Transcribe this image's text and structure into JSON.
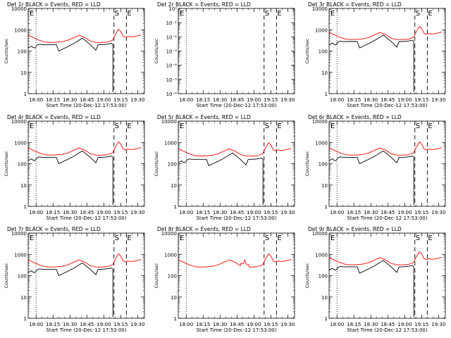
{
  "colors": {
    "background": "#ffffff",
    "events": "#000000",
    "lld": "#ff0000"
  },
  "chart_data": {
    "type": "line",
    "scale": "log",
    "panels": [
      {
        "title": "Det 1r BLACK = Events, RED = LLD",
        "ylabel": "Counts/sec",
        "xlabel": "Start Time (20-Dec-12 17:53:00)",
        "ylim": [
          1,
          10000
        ],
        "yticks": [
          "1",
          "10",
          "100",
          "1000",
          "10000"
        ],
        "xticks": [
          "18:00",
          "18:15",
          "18:30",
          "18:45",
          "19:00",
          "19:15",
          "19:30"
        ],
        "markers": [
          "S",
          "E"
        ],
        "lld_scale": 2.2,
        "events_scale": 1.0,
        "lld_only": false
      },
      {
        "title": "Det 2r BLACK = Events, RED = LLD",
        "ylabel": "Counts/sec",
        "xlabel": "Start Time (20-Dec-12 17:53:00)",
        "ylim": [
          1e-06,
          1
        ],
        "yticks": [
          "10⁻⁶",
          "10⁻⁵",
          "10⁻⁴",
          "10⁻³",
          "10⁻²",
          "10⁻¹",
          "10⁰"
        ],
        "xticks": [
          "18:00",
          "18:15",
          "18:30",
          "18:45",
          "19:00",
          "19:15",
          "19:30"
        ],
        "markers": [
          "S",
          "E"
        ],
        "lld_scale": 0,
        "events_scale": 0,
        "lld_only": false,
        "empty": true
      },
      {
        "title": "Det 3r BLACK = Events, RED = LLD",
        "ylabel": "Counts/sec",
        "xlabel": "Start Time (20-Dec-12 17:53:00)",
        "ylim": [
          1,
          10000
        ],
        "yticks": [
          "1",
          "10",
          "100",
          "1000",
          "10000"
        ],
        "xticks": [
          "18:00",
          "18:15",
          "18:30",
          "18:45",
          "19:00",
          "19:15",
          "19:30"
        ],
        "markers": [
          "S",
          "E"
        ],
        "lld_scale": 3.0,
        "events_scale": 1.4,
        "lld_only": false
      },
      {
        "title": "Det 4r BLACK = Events, RED = LLD",
        "ylabel": "Counts/sec",
        "xlabel": "Start Time (20-Dec-12 17:53:00)",
        "ylim": [
          1,
          10000
        ],
        "yticks": [
          "1",
          "10",
          "100",
          "1000",
          "10000"
        ],
        "xticks": [
          "18:00",
          "18:15",
          "18:30",
          "18:45",
          "19:00",
          "19:15",
          "19:30"
        ],
        "markers": [
          "S",
          "E"
        ],
        "lld_scale": 2.2,
        "events_scale": 1.0,
        "lld_only": false
      },
      {
        "title": "Det 5r BLACK = Events, RED = LLD",
        "ylabel": "Counts/sec",
        "xlabel": "Start Time (20-Dec-12 17:53:00)",
        "ylim": [
          1,
          10000
        ],
        "yticks": [
          "1",
          "10",
          "100",
          "1000",
          "10000"
        ],
        "xticks": [
          "18:00",
          "18:15",
          "18:30",
          "18:45",
          "19:00",
          "19:15",
          "19:30"
        ],
        "markers": [
          "S",
          "E"
        ],
        "lld_scale": 2.0,
        "events_scale": 0.8,
        "lld_only": false
      },
      {
        "title": "Det 6r BLACK = Events, RED = LLD",
        "ylabel": "Counts/sec",
        "xlabel": "Start Time (20-Dec-12 17:53:00)",
        "ylim": [
          1,
          10000
        ],
        "yticks": [
          "1",
          "10",
          "100",
          "1000",
          "10000"
        ],
        "xticks": [
          "18:00",
          "18:15",
          "18:30",
          "18:45",
          "19:00",
          "19:15",
          "19:30"
        ],
        "markers": [
          "S",
          "E"
        ],
        "lld_scale": 2.2,
        "events_scale": 1.0,
        "lld_only": false
      },
      {
        "title": "Det 7r BLACK = Events, RED = LLD",
        "ylabel": "Counts/sec",
        "xlabel": "Start Time (20-Dec-12 17:53:00)",
        "ylim": [
          1,
          10000
        ],
        "yticks": [
          "1",
          "10",
          "100",
          "1000",
          "10000"
        ],
        "xticks": [
          "18:00",
          "18:15",
          "18:30",
          "18:45",
          "19:00",
          "19:15",
          "19:30"
        ],
        "markers": [
          "S",
          "E"
        ],
        "lld_scale": 2.2,
        "events_scale": 1.0,
        "lld_only": false
      },
      {
        "title": "Det 8r BLACK = Events, RED = LLD",
        "ylabel": "Counts/sec",
        "xlabel": "Start Time (20-Dec-12 17:53:00)",
        "ylim": [
          1,
          10000
        ],
        "yticks": [
          "1",
          "10",
          "100",
          "1000",
          "10000"
        ],
        "xticks": [
          "18:00",
          "18:15",
          "18:30",
          "18:45",
          "19:00",
          "19:15",
          "19:30"
        ],
        "markers": [
          "S",
          "E"
        ],
        "lld_scale": 2.2,
        "events_scale": 0,
        "lld_only": true
      },
      {
        "title": "Det 9r BLACK = Events, RED = LLD",
        "ylabel": "Counts/sec",
        "xlabel": "Start Time (20-Dec-12 17:53:00)",
        "ylim": [
          1,
          10000
        ],
        "yticks": [
          "1",
          "10",
          "100",
          "1000",
          "10000"
        ],
        "xticks": [
          "18:00",
          "18:15",
          "18:30",
          "18:45",
          "19:00",
          "19:15",
          "19:30"
        ],
        "markers": [
          "S",
          "E"
        ],
        "lld_scale": 2.8,
        "events_scale": 1.3,
        "lld_only": false
      }
    ],
    "vlines": {
      "dotted_minutes": 7,
      "dashed_minutes": [
        76,
        87
      ]
    },
    "xrange_minutes": [
      0,
      103
    ],
    "events_profile": {
      "minutes": [
        0,
        3,
        4,
        6,
        8,
        10,
        12,
        15,
        20,
        25,
        27,
        30,
        35,
        40,
        45,
        48,
        50,
        55,
        60,
        62,
        64,
        66,
        70,
        74,
        75
      ],
      "values": [
        140,
        170,
        150,
        140,
        190,
        210,
        200,
        200,
        200,
        200,
        100,
        120,
        160,
        220,
        320,
        400,
        330,
        200,
        110,
        200,
        200,
        200,
        210,
        230,
        200
      ]
    },
    "lld_profile": {
      "minutes": [
        0,
        5,
        10,
        15,
        20,
        25,
        30,
        35,
        40,
        45,
        50,
        55,
        60,
        65,
        70,
        73,
        75,
        76,
        78,
        80,
        82,
        84,
        86,
        88,
        92,
        96,
        100
      ],
      "values": [
        250,
        190,
        145,
        120,
        115,
        118,
        125,
        145,
        190,
        250,
        200,
        135,
        115,
        115,
        120,
        135,
        150,
        200,
        320,
        480,
        380,
        230,
        200,
        220,
        210,
        230,
        260
      ]
    }
  }
}
